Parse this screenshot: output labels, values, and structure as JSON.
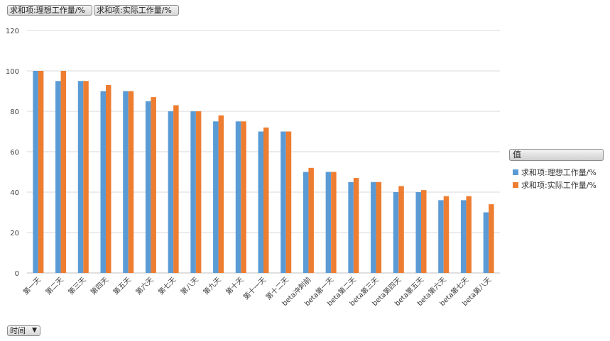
{
  "field_buttons": [
    "求和项:理想工作量/%",
    "求和项:实际工作量/%"
  ],
  "legend": {
    "header": "值",
    "items": [
      {
        "label": "求和项:理想工作量/%",
        "color": "#5b9bd5"
      },
      {
        "label": "求和项:实际工作量/%",
        "color": "#ed7d31"
      }
    ]
  },
  "axis_filter": {
    "label": "时间",
    "icon": "dropdown-triangle-icon"
  },
  "chart_data": {
    "type": "bar",
    "categories": [
      "第一天",
      "第二天",
      "第三天",
      "第四天",
      "第五天",
      "第六天",
      "第七天",
      "第八天",
      "第九天",
      "第十天",
      "第十一天",
      "第十二天",
      "beta冲刺前",
      "beta第一天",
      "beta第二天",
      "beta第三天",
      "beta第四天",
      "beta第五天",
      "beta第六天",
      "beta第七天",
      "beta第八天"
    ],
    "series": [
      {
        "name": "求和项:理想工作量/%",
        "color": "#5b9bd5",
        "values": [
          100,
          95,
          95,
          90,
          90,
          85,
          80,
          80,
          75,
          75,
          70,
          70,
          50,
          50,
          45,
          45,
          40,
          40,
          36,
          36,
          30
        ]
      },
      {
        "name": "求和项:实际工作量/%",
        "color": "#ed7d31",
        "values": [
          100,
          100,
          95,
          93,
          90,
          87,
          83,
          80,
          78,
          75,
          72,
          70,
          52,
          50,
          47,
          45,
          43,
          41,
          38,
          38,
          34
        ]
      }
    ],
    "ylim": [
      0,
      120
    ],
    "yticks": [
      0,
      20,
      40,
      60,
      80,
      100,
      120
    ],
    "grid": true,
    "legend_position": "right"
  }
}
